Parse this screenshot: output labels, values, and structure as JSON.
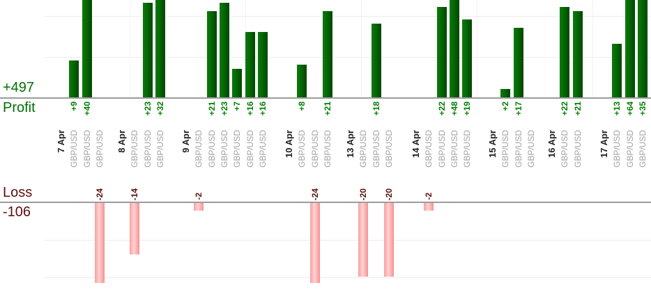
{
  "summary": {
    "profit_total": "+497",
    "profit_label": "Profit",
    "loss_label": "Loss",
    "loss_total": "-106"
  },
  "colors": {
    "profit_bar_light": "#0a7c0a",
    "profit_bar_dark": "#014701",
    "loss_bar_light": "#ffd2d2",
    "loss_bar_edge": "#f9a0a0",
    "profit_text": "#008000",
    "profit_total_text": "#017001",
    "loss_text": "#5c0f0f",
    "date_text": "#222222",
    "symbol_text": "#a2a2a2",
    "axis_line": "#9b9b9b",
    "gridline": "#ececec"
  },
  "chart_data": {
    "type": "bar",
    "orientation": "vertical",
    "title": "",
    "xlabel": "",
    "profit_axis": {
      "label": "Profit",
      "total": 497,
      "gridline_step": 10,
      "visible_max": 24
    },
    "loss_axis": {
      "label": "Loss",
      "total": -106,
      "gridline_step": 10,
      "visible_min": -22
    },
    "legend": null,
    "grid": true,
    "groups": [
      {
        "date": "7 Apr",
        "trades": [
          {
            "symbol": "GBP/USD",
            "value": 9,
            "label": "+9"
          },
          {
            "symbol": "GBP/USD",
            "value": 40,
            "label": "+40"
          },
          {
            "symbol": "GBP/USD",
            "value": -24,
            "label": "-24"
          }
        ]
      },
      {
        "date": "8 Apr",
        "trades": [
          {
            "symbol": "GBP/USD",
            "value": -14,
            "label": "-14"
          },
          {
            "symbol": "GBP/USD",
            "value": 23,
            "label": "+23"
          },
          {
            "symbol": "GBP/USD",
            "value": 32,
            "label": "+32"
          }
        ]
      },
      {
        "date": "9 Apr",
        "trades": [
          {
            "symbol": "GBP/USD",
            "value": -2,
            "label": "-2"
          },
          {
            "symbol": "GBP/USD",
            "value": 21,
            "label": "+21"
          },
          {
            "symbol": "GBP/USD",
            "value": 23,
            "label": "+23"
          },
          {
            "symbol": "GBP/USD",
            "value": 7,
            "label": "+7"
          },
          {
            "symbol": "GBP/USD",
            "value": 16,
            "label": "+16"
          },
          {
            "symbol": "GBP/USD",
            "value": 16,
            "label": "+16"
          }
        ]
      },
      {
        "date": "10 Apr",
        "trades": [
          {
            "symbol": "GBP/USD",
            "value": 8,
            "label": "+8"
          },
          {
            "symbol": "GBP/USD",
            "value": -24,
            "label": "-24"
          },
          {
            "symbol": "GBP/USD",
            "value": 21,
            "label": "+21"
          }
        ]
      },
      {
        "date": "13 Apr",
        "trades": [
          {
            "symbol": "GBP/USD",
            "value": -20,
            "label": "-20"
          },
          {
            "symbol": "GBP/USD",
            "value": 18,
            "label": "+18"
          },
          {
            "symbol": "GBP/USD",
            "value": -20,
            "label": "-20"
          }
        ]
      },
      {
        "date": "14 Apr",
        "trades": [
          {
            "symbol": "GBP/USD",
            "value": -2,
            "label": "-2"
          },
          {
            "symbol": "GBP/USD",
            "value": 22,
            "label": "+22"
          },
          {
            "symbol": "GBP/USD",
            "value": 48,
            "label": "+48"
          },
          {
            "symbol": "GBP/USD",
            "value": 19,
            "label": "+19"
          }
        ]
      },
      {
        "date": "15 Apr",
        "trades": [
          {
            "symbol": "GBP/USD",
            "value": 2,
            "label": "+2"
          },
          {
            "symbol": "GBP/USD",
            "value": 17,
            "label": "+17"
          },
          {
            "symbol": "GBP/USD",
            "value": 0,
            "label": ""
          }
        ]
      },
      {
        "date": "16 Apr",
        "trades": [
          {
            "symbol": "GBP/USD",
            "value": 22,
            "label": "+22"
          },
          {
            "symbol": "GBP/USD",
            "value": 21,
            "label": "+21"
          }
        ]
      },
      {
        "date": "17 Apr",
        "trades": [
          {
            "symbol": "GBP/USD",
            "value": 13,
            "label": "+13"
          },
          {
            "symbol": "GBP/USD",
            "value": 64,
            "label": "+64"
          },
          {
            "symbol": "GBP/USD",
            "value": 35,
            "label": "+35"
          }
        ]
      }
    ]
  }
}
